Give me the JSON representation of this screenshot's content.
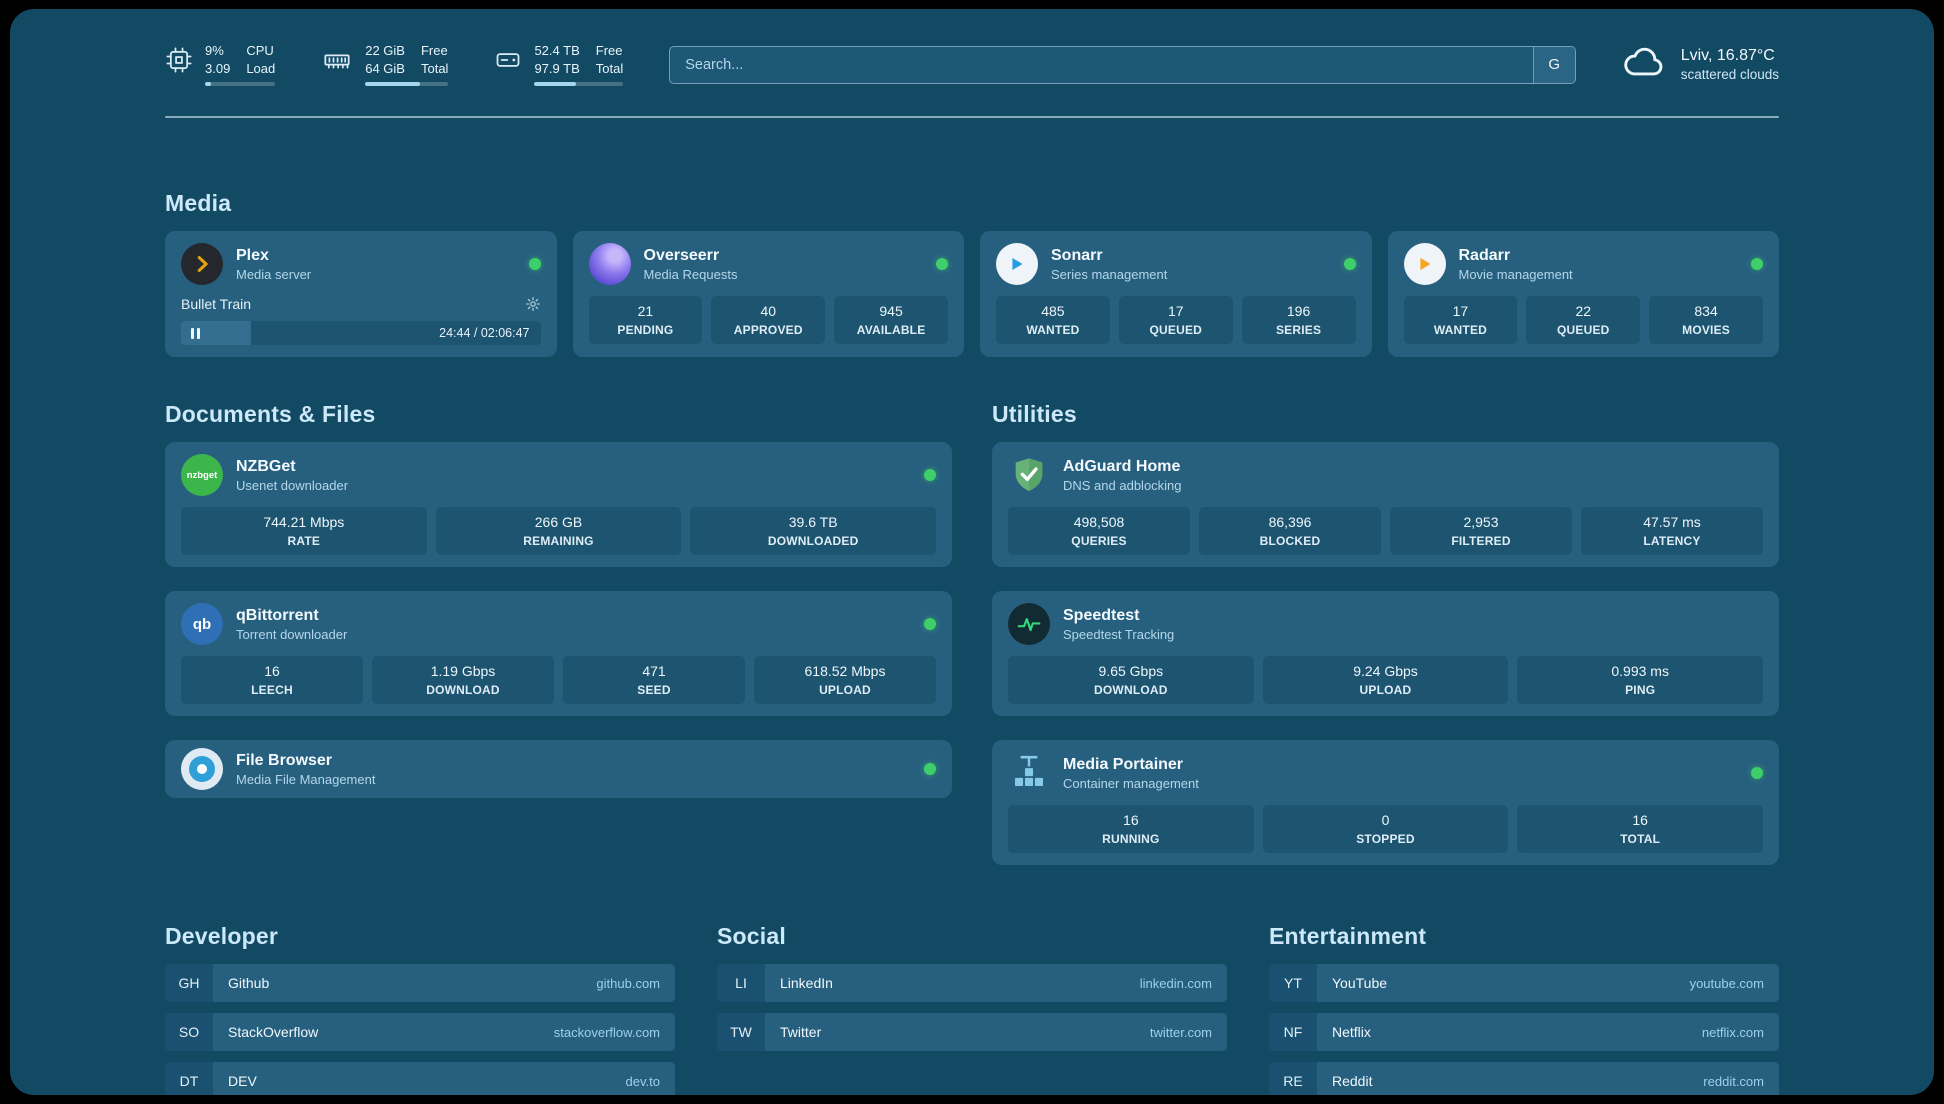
{
  "colors": {
    "status_green": "#3ecf6a",
    "background": "#134a63",
    "card": "#27607e"
  },
  "topbar": {
    "cpu": {
      "value_top": "9%",
      "value_bottom": "3.09",
      "label_top": "CPU",
      "label_bottom": "Load",
      "bar_pct": 9
    },
    "memory": {
      "value_top": "22 GiB",
      "value_bottom": "64 GiB",
      "label_top": "Free",
      "label_bottom": "Total",
      "bar_pct": 66
    },
    "disk": {
      "value_top": "52.4 TB",
      "value_bottom": "97.9 TB",
      "label_top": "Free",
      "label_bottom": "Total",
      "bar_pct": 47
    },
    "search": {
      "placeholder": "Search...",
      "engine_button": "G"
    },
    "weather": {
      "location": "Lviv, 16.87°C",
      "condition": "scattered clouds"
    }
  },
  "media": {
    "title": "Media",
    "plex": {
      "name": "Plex",
      "sub": "Media server",
      "now_playing": "Bullet Train",
      "time": "24:44 / 02:06:47",
      "progress_pct": 19.5
    },
    "overseerr": {
      "name": "Overseerr",
      "sub": "Media Requests",
      "stats": [
        {
          "v": "21",
          "l": "PENDING"
        },
        {
          "v": "40",
          "l": "APPROVED"
        },
        {
          "v": "945",
          "l": "AVAILABLE"
        }
      ]
    },
    "sonarr": {
      "name": "Sonarr",
      "sub": "Series management",
      "stats": [
        {
          "v": "485",
          "l": "WANTED"
        },
        {
          "v": "17",
          "l": "QUEUED"
        },
        {
          "v": "196",
          "l": "SERIES"
        }
      ]
    },
    "radarr": {
      "name": "Radarr",
      "sub": "Movie management",
      "stats": [
        {
          "v": "17",
          "l": "WANTED"
        },
        {
          "v": "22",
          "l": "QUEUED"
        },
        {
          "v": "834",
          "l": "MOVIES"
        }
      ]
    }
  },
  "documents": {
    "title": "Documents & Files",
    "nzbget": {
      "name": "NZBGet",
      "sub": "Usenet downloader",
      "icon_text": "nzbget",
      "stats": [
        {
          "v": "744.21 Mbps",
          "l": "RATE"
        },
        {
          "v": "266 GB",
          "l": "REMAINING"
        },
        {
          "v": "39.6 TB",
          "l": "DOWNLOADED"
        }
      ]
    },
    "qbittorrent": {
      "name": "qBittorrent",
      "sub": "Torrent downloader",
      "icon_text": "qb",
      "stats": [
        {
          "v": "16",
          "l": "LEECH"
        },
        {
          "v": "1.19 Gbps",
          "l": "DOWNLOAD"
        },
        {
          "v": "471",
          "l": "SEED"
        },
        {
          "v": "618.52 Mbps",
          "l": "UPLOAD"
        }
      ]
    },
    "filebrowser": {
      "name": "File Browser",
      "sub": "Media File Management"
    }
  },
  "utilities": {
    "title": "Utilities",
    "adguard": {
      "name": "AdGuard Home",
      "sub": "DNS and adblocking",
      "stats": [
        {
          "v": "498,508",
          "l": "QUERIES"
        },
        {
          "v": "86,396",
          "l": "BLOCKED"
        },
        {
          "v": "2,953",
          "l": "FILTERED"
        },
        {
          "v": "47.57 ms",
          "l": "LATENCY"
        }
      ]
    },
    "speedtest": {
      "name": "Speedtest",
      "sub": "Speedtest Tracking",
      "stats": [
        {
          "v": "9.65 Gbps",
          "l": "DOWNLOAD"
        },
        {
          "v": "9.24 Gbps",
          "l": "UPLOAD"
        },
        {
          "v": "0.993 ms",
          "l": "PING"
        }
      ]
    },
    "portainer": {
      "name": "Media Portainer",
      "sub": "Container management",
      "stats": [
        {
          "v": "16",
          "l": "RUNNING"
        },
        {
          "v": "0",
          "l": "STOPPED"
        },
        {
          "v": "16",
          "l": "TOTAL"
        }
      ]
    }
  },
  "bookmarks": {
    "developer": {
      "title": "Developer",
      "items": [
        {
          "tag": "GH",
          "name": "Github",
          "url": "github.com"
        },
        {
          "tag": "SO",
          "name": "StackOverflow",
          "url": "stackoverflow.com"
        },
        {
          "tag": "DT",
          "name": "DEV",
          "url": "dev.to"
        }
      ]
    },
    "social": {
      "title": "Social",
      "items": [
        {
          "tag": "LI",
          "name": "LinkedIn",
          "url": "linkedin.com"
        },
        {
          "tag": "TW",
          "name": "Twitter",
          "url": "twitter.com"
        }
      ]
    },
    "entertainment": {
      "title": "Entertainment",
      "items": [
        {
          "tag": "YT",
          "name": "YouTube",
          "url": "youtube.com"
        },
        {
          "tag": "NF",
          "name": "Netflix",
          "url": "netflix.com"
        },
        {
          "tag": "RE",
          "name": "Reddit",
          "url": "reddit.com"
        }
      ]
    }
  }
}
